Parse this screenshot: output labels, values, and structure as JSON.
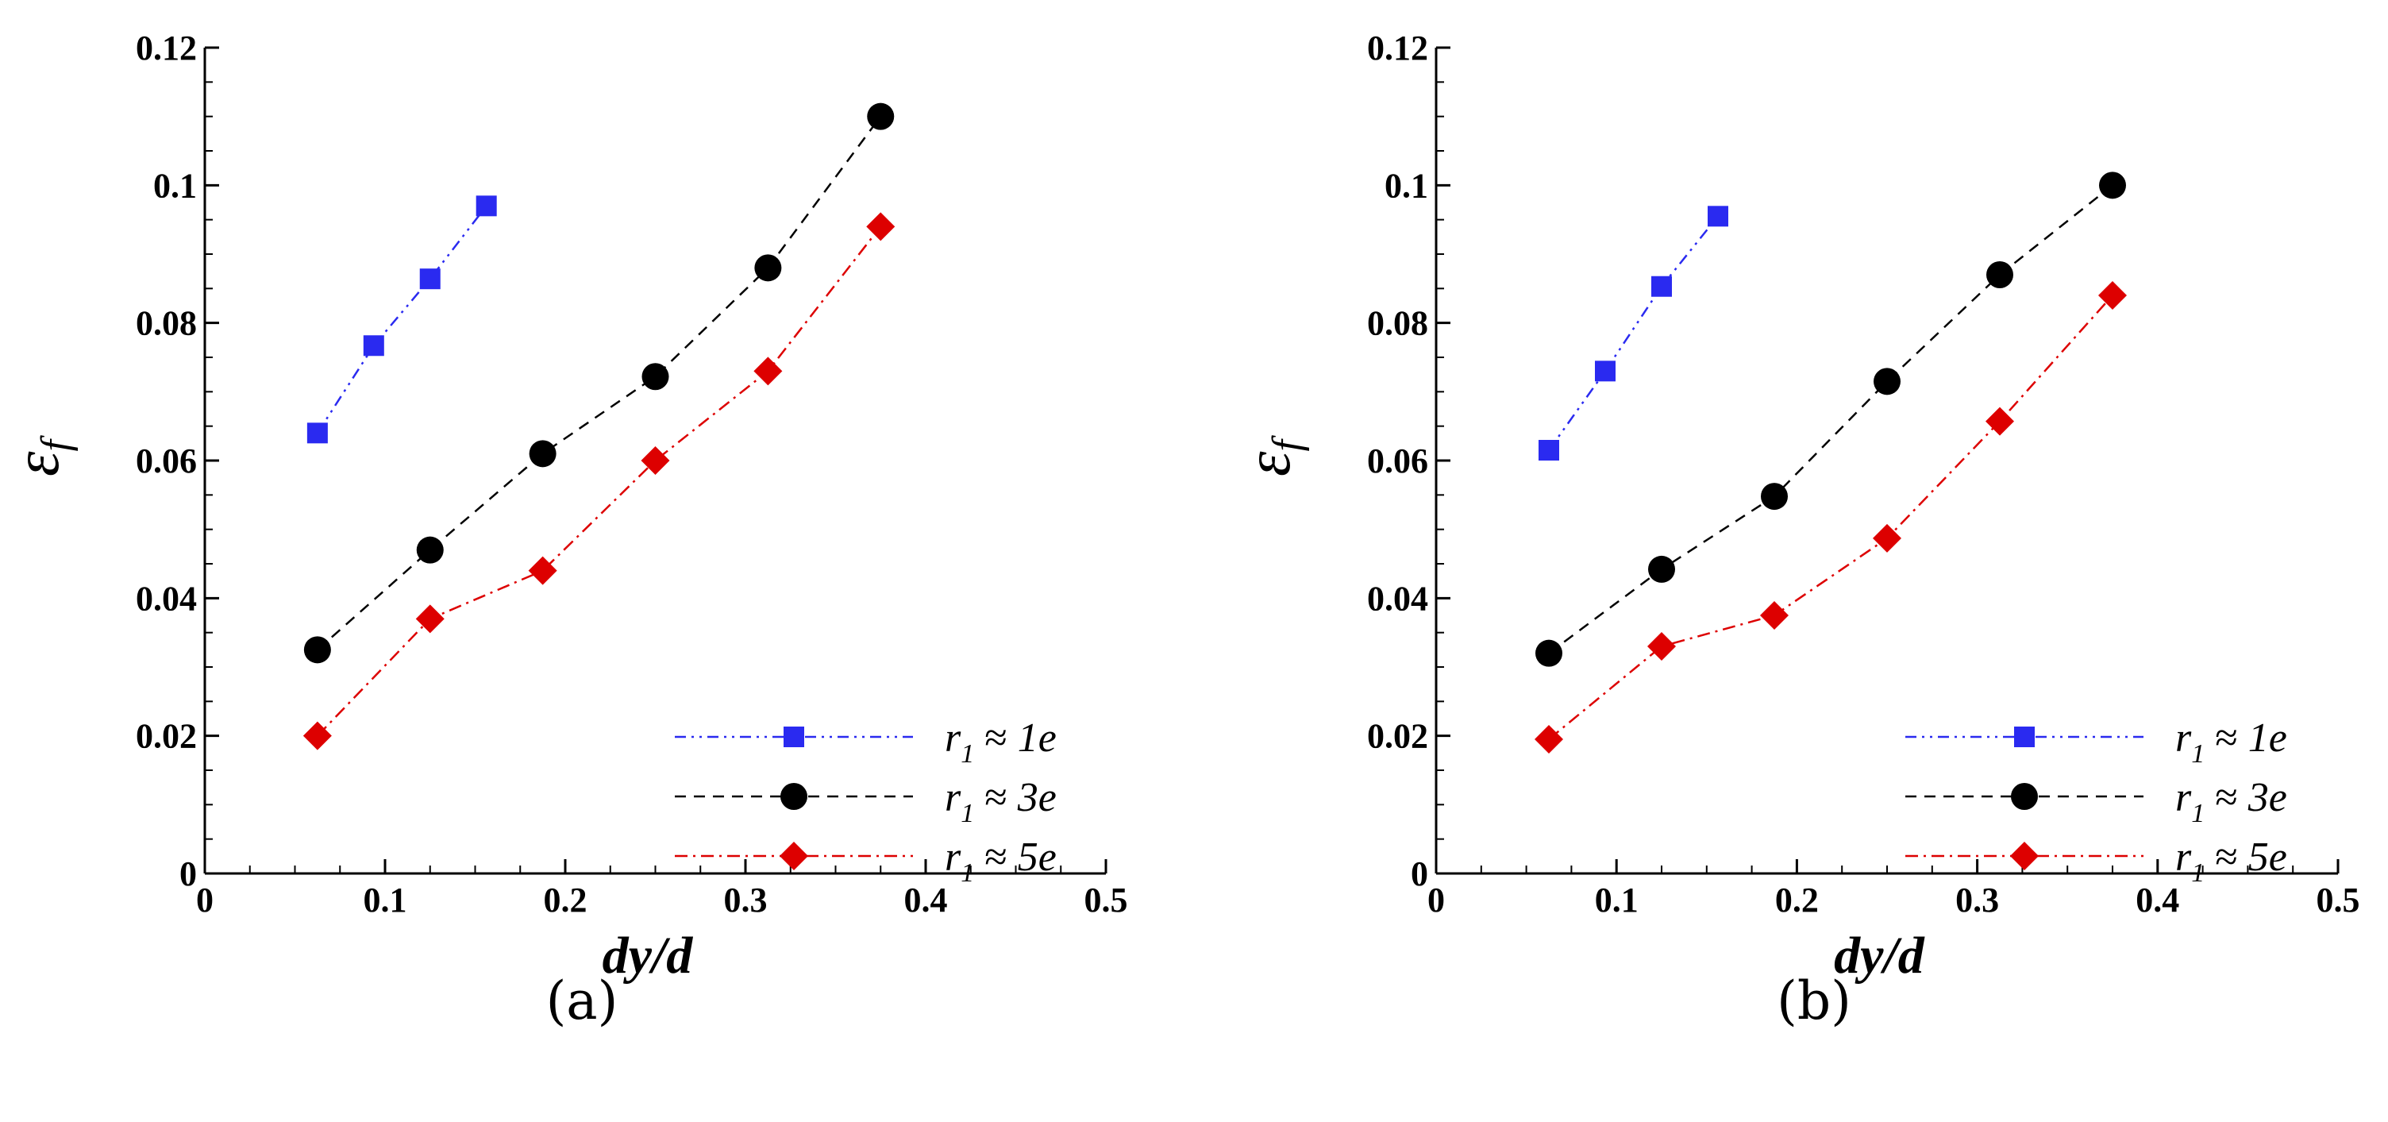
{
  "chart_data": [
    {
      "panel": "(a)",
      "type": "line",
      "xlabel": "dy/d",
      "ylabel": "ε",
      "ylabel_subscript": "f",
      "xlim": [
        0,
        0.5
      ],
      "ylim": [
        0,
        0.12
      ],
      "x_ticks": [
        "0",
        "0.1",
        "0.2",
        "0.3",
        "0.4",
        "0.5"
      ],
      "y_ticks": [
        "0",
        "0.02",
        "0.04",
        "0.06",
        "0.08",
        "0.1",
        "0.12"
      ],
      "legend_position": "bottom-right",
      "series": [
        {
          "key": "r1e",
          "name_main": "r",
          "name_sub": "1",
          "name_rest": "≈ 1e",
          "color": "#2a2af0",
          "marker": "square",
          "dash": "dash-dot-dot",
          "x": [
            0.0625,
            0.09375,
            0.125,
            0.15625
          ],
          "y": [
            0.064,
            0.0767,
            0.0864,
            0.097
          ]
        },
        {
          "key": "r3e",
          "name_main": "r",
          "name_sub": "1",
          "name_rest": "≈ 3e",
          "color": "#000000",
          "marker": "circle",
          "dash": "dashed",
          "x": [
            0.0625,
            0.125,
            0.1875,
            0.25,
            0.3125,
            0.375
          ],
          "y": [
            0.0325,
            0.047,
            0.061,
            0.0722,
            0.088,
            0.11
          ]
        },
        {
          "key": "r5e",
          "name_main": "r",
          "name_sub": "1",
          "name_rest": "≈ 5e",
          "color": "#dd0000",
          "marker": "diamond",
          "dash": "dash-dot",
          "x": [
            0.0625,
            0.125,
            0.1875,
            0.25,
            0.3125,
            0.375
          ],
          "y": [
            0.02,
            0.037,
            0.044,
            0.06,
            0.073,
            0.094
          ]
        }
      ]
    },
    {
      "panel": "(b)",
      "type": "line",
      "xlabel": "dy/d",
      "ylabel": "ε",
      "ylabel_subscript": "f",
      "xlim": [
        0,
        0.5
      ],
      "ylim": [
        0,
        0.12
      ],
      "x_ticks": [
        "0",
        "0.1",
        "0.2",
        "0.3",
        "0.4",
        "0.5"
      ],
      "y_ticks": [
        "0",
        "0.02",
        "0.04",
        "0.06",
        "0.08",
        "0.1",
        "0.12"
      ],
      "legend_position": "bottom-right",
      "series": [
        {
          "key": "r1e",
          "name_main": "r",
          "name_sub": "1",
          "name_rest": "≈ 1e",
          "color": "#2a2af0",
          "marker": "square",
          "dash": "dash-dot-dot",
          "x": [
            0.0625,
            0.09375,
            0.125,
            0.15625
          ],
          "y": [
            0.0615,
            0.073,
            0.0853,
            0.0955
          ]
        },
        {
          "key": "r3e",
          "name_main": "r",
          "name_sub": "1",
          "name_rest": "≈ 3e",
          "color": "#000000",
          "marker": "circle",
          "dash": "dashed",
          "x": [
            0.0625,
            0.125,
            0.1875,
            0.25,
            0.3125,
            0.375
          ],
          "y": [
            0.032,
            0.0442,
            0.0548,
            0.0715,
            0.087,
            0.1
          ]
        },
        {
          "key": "r5e",
          "name_main": "r",
          "name_sub": "1",
          "name_rest": "≈ 5e",
          "color": "#dd0000",
          "marker": "diamond",
          "dash": "dash-dot",
          "x": [
            0.0625,
            0.125,
            0.1875,
            0.25,
            0.3125,
            0.375
          ],
          "y": [
            0.0195,
            0.033,
            0.0375,
            0.0487,
            0.0657,
            0.084
          ]
        }
      ]
    }
  ]
}
